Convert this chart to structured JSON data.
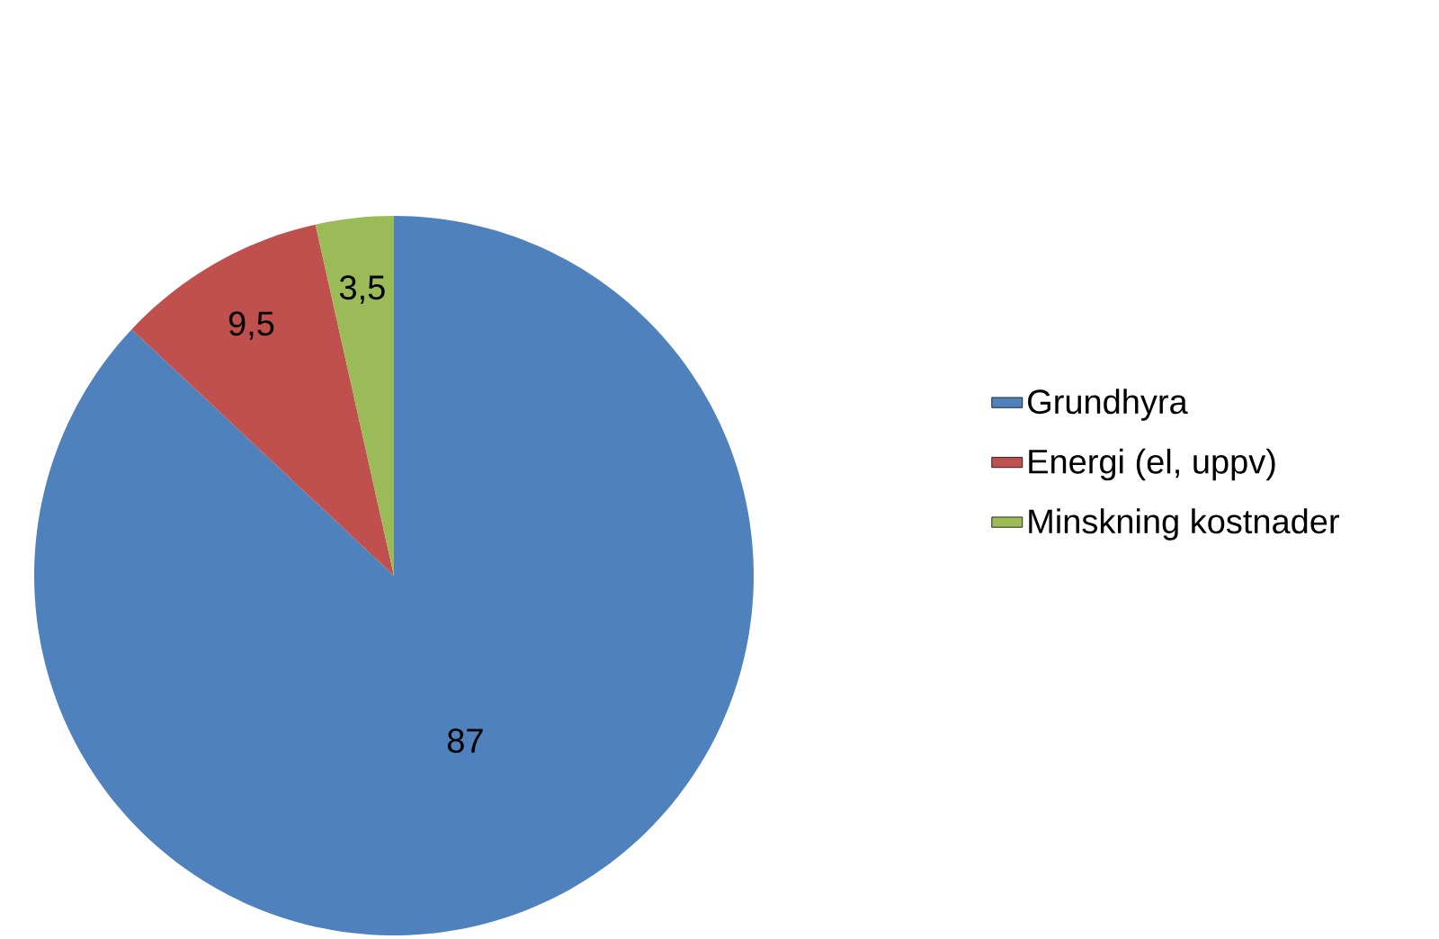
{
  "chart_data": {
    "type": "pie",
    "categories": [
      "Grundhyra",
      "Energi (el, uppv)",
      "Minskning kostnader"
    ],
    "values": [
      87,
      9.5,
      3.5
    ],
    "value_labels": [
      "87",
      "9,5",
      "3,5"
    ],
    "colors": [
      "#4f81bd",
      "#c0504d",
      "#9bbb59"
    ],
    "legend": "right"
  }
}
